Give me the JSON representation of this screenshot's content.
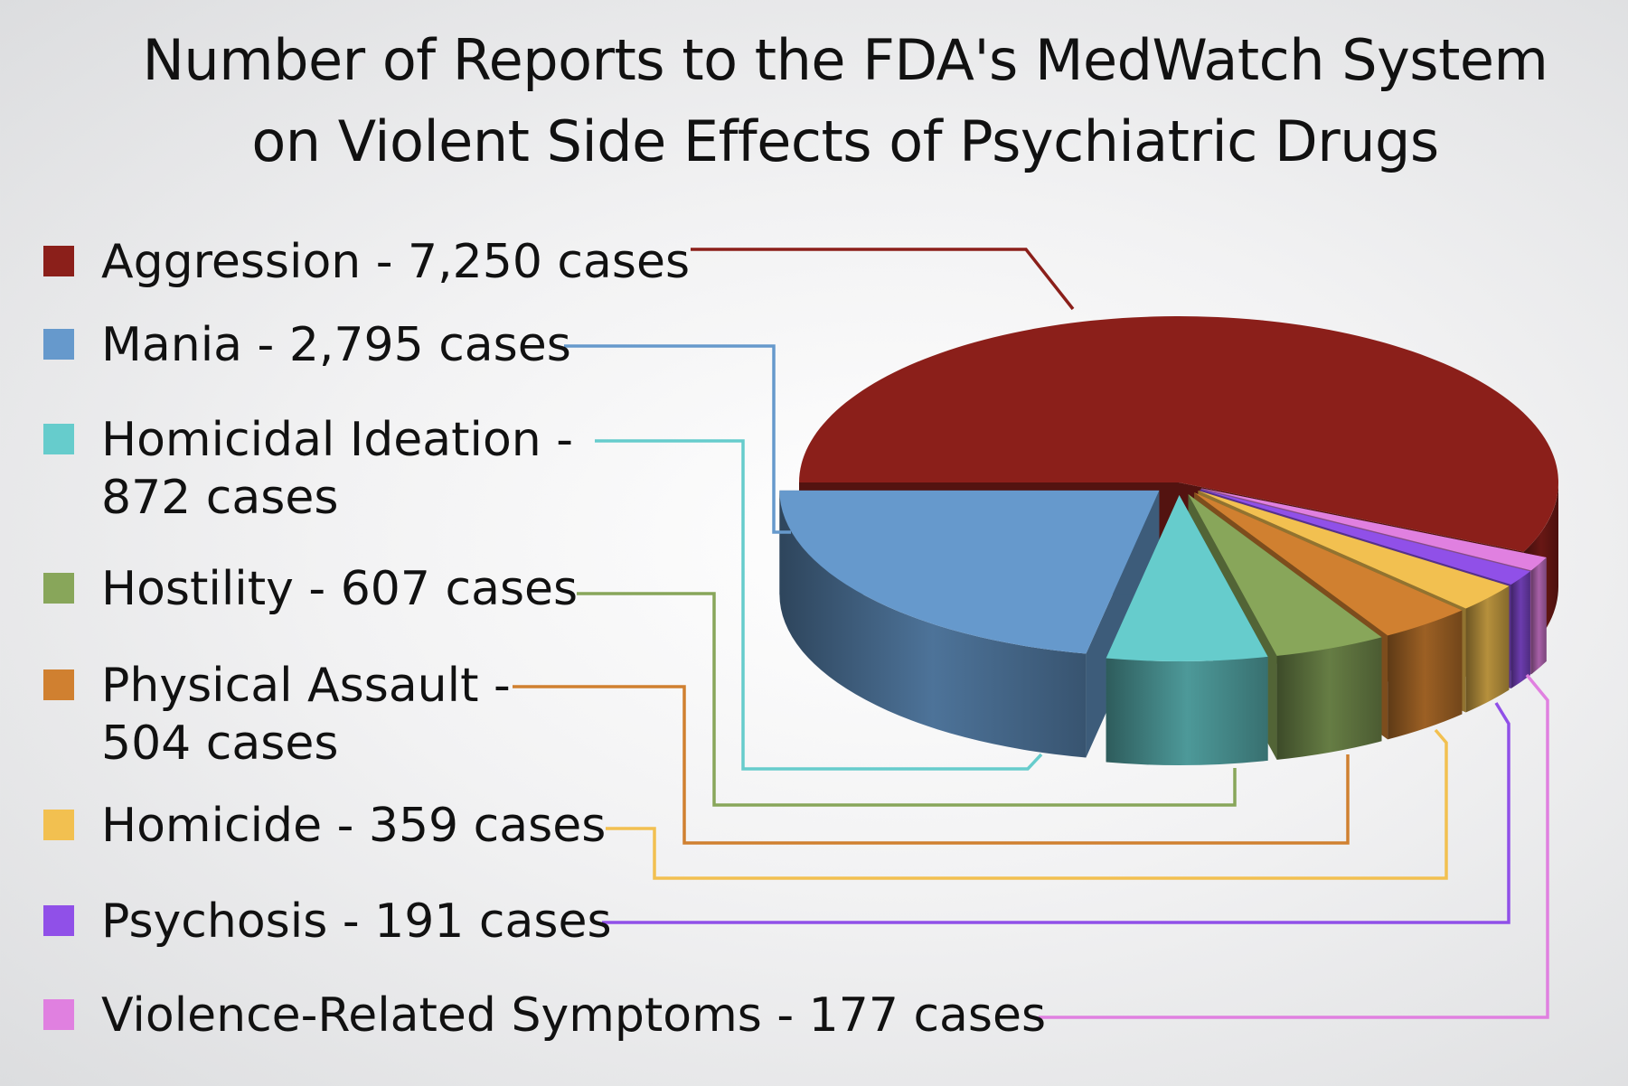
{
  "chart_data": {
    "type": "pie",
    "style": "3d-exploded",
    "title": [
      "Number of Reports to the FDA's MedWatch System",
      "on Violent Side Effects of Psychiatric Drugs"
    ],
    "legend_placement": "left",
    "unit": "cases",
    "slices": [
      {
        "label": "Aggression - 7,250 cases",
        "name": "Aggression",
        "value": 7250,
        "color": "#8B1F1A"
      },
      {
        "label": "Mania - 2,795 cases",
        "name": "Mania",
        "value": 2795,
        "color": "#6699CC"
      },
      {
        "label": "Homicidal Ideation - 872 cases",
        "name": "Homicidal Ideation",
        "value": 872,
        "color": "#66CCCC"
      },
      {
        "label": "Hostility - 607 cases",
        "name": "Hostility",
        "value": 607,
        "color": "#88A65A"
      },
      {
        "label": "Physical Assault - 504 cases",
        "name": "Physical Assault",
        "value": 504,
        "color": "#D08030"
      },
      {
        "label": "Homicide - 359 cases",
        "name": "Homicide",
        "value": 359,
        "color": "#F2C050"
      },
      {
        "label": "Psychosis - 191 cases",
        "name": "Psychosis",
        "value": 191,
        "color": "#9050E8"
      },
      {
        "label": "Violence-Related Symptoms - 177 cases",
        "name": "Violence-Related Symptoms",
        "value": 177,
        "color": "#E080E0"
      }
    ]
  }
}
